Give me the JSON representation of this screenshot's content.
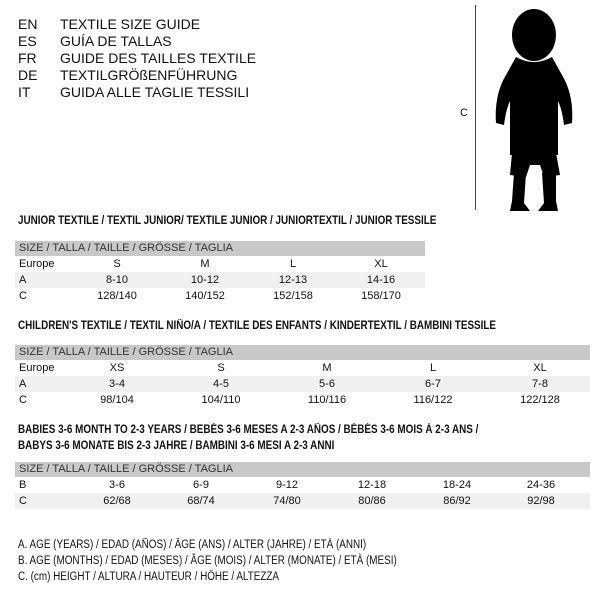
{
  "languages": [
    {
      "code": "EN",
      "text": "TEXTILE SIZE GUIDE"
    },
    {
      "code": "ES",
      "text": "GUÍA DE TALLAS"
    },
    {
      "code": "FR",
      "text": "GUIDE DES TAILLES TEXTILE"
    },
    {
      "code": "DE",
      "text": "TEXTILGRÖßENFÜHRUNG"
    },
    {
      "code": "IT",
      "text": "GUIDA ALLE TAGLIE TESSILI"
    }
  ],
  "figure": {
    "label": "C",
    "icon": "toddler-silhouette-icon"
  },
  "junior": {
    "title": "JUNIOR TEXTILE / TEXTIL JUNIOR/ TEXTILE JUNIOR / JUNIORTEXTIL / JUNIOR TESSILE",
    "header": "SIZE / TALLA / TAILLE / GRÖSSE / TAGLIA",
    "rows": [
      {
        "label": "Europe",
        "cells": [
          "S",
          "M",
          "L",
          "XL"
        ]
      },
      {
        "label": "A",
        "cells": [
          "8-10",
          "10-12",
          "12-13",
          "14-16"
        ]
      },
      {
        "label": "C",
        "cells": [
          "128/140",
          "140/152",
          "152/158",
          "158/170"
        ]
      }
    ]
  },
  "children": {
    "title": "CHILDREN'S TEXTILE / TEXTIL NIÑO/A / TEXTILE DES ENFANTS / KINDERTEXTIL / BAMBINI TESSILE",
    "header": "SIZE / TALLA / TAILLE / GRÖSSE / TAGLIA",
    "rows": [
      {
        "label": "Europe",
        "cells": [
          "XS",
          "S",
          "M",
          "L",
          "XL"
        ]
      },
      {
        "label": "A",
        "cells": [
          "3-4",
          "4-5",
          "5-6",
          "6-7",
          "7-8"
        ]
      },
      {
        "label": "C",
        "cells": [
          "98/104",
          "104/110",
          "110/116",
          "116/122",
          "122/128"
        ]
      }
    ]
  },
  "babies": {
    "title_line1": "BABIES 3-6 MONTH TO 2-3 YEARS / BEBÉS 3-6 MESES A 2-3 AÑOS / BÉBÉS 3-6 MOIS À 2-3 ANS /",
    "title_line2": "BABYS 3-6 MONATE BIS 2-3 JAHRE / BAMBINI 3-6 MESI A 2-3 ANNI",
    "header": "SIZE / TALLA / TAILLE / GRÖSSE / TAGLIA",
    "rows": [
      {
        "label": "B",
        "cells": [
          "3-6",
          "6-9",
          "9-12",
          "12-18",
          "18-24",
          "24-36"
        ]
      },
      {
        "label": "C",
        "cells": [
          "62/68",
          "68/74",
          "74/80",
          "80/86",
          "86/92",
          "92/98"
        ]
      }
    ]
  },
  "legend": [
    "A. AGE (YEARS) / EDAD (AÑOS) / ÂGE (ANS) / ALTER (JAHRE) / ETÀ (ANNI)",
    "B. AGE (MONTHS) / EDAD (MESES) / ÂGE (MOIS) / ALTER (MONATE) / ETÀ (MESI)",
    "C. (cm) HEIGHT / ALTURA / HAUTEUR / HÖHE / ALTEZZA"
  ]
}
